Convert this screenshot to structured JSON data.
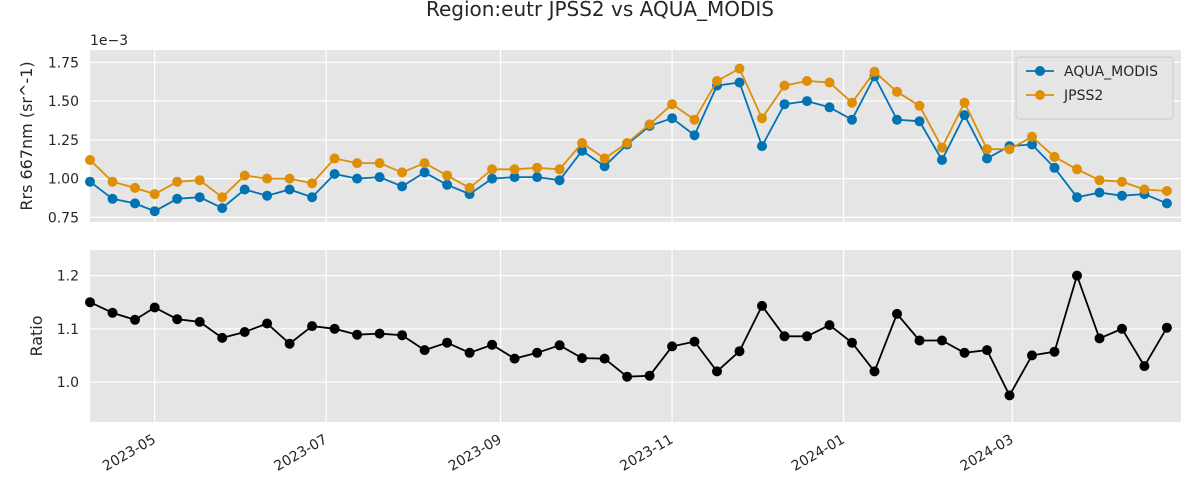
{
  "chart_data": {
    "type": "line",
    "title": "Region:eutr JPSS2 vs AQUA_MODIS",
    "x_tick_labels": [
      "2023-05",
      "2023-07",
      "2023-09",
      "2023-11",
      "2024-01",
      "2024-03"
    ],
    "x_ticks": [
      "2023-05-01",
      "2023-07-01",
      "2023-09-01",
      "2023-11-01",
      "2024-01-01",
      "2024-03-01"
    ],
    "xlim": [
      "2023-04-08",
      "2024-04-30"
    ],
    "dates": [
      "2023-04-08",
      "2023-04-16",
      "2023-04-24",
      "2023-05-01",
      "2023-05-09",
      "2023-05-17",
      "2023-05-25",
      "2023-06-02",
      "2023-06-10",
      "2023-06-18",
      "2023-06-26",
      "2023-07-04",
      "2023-07-12",
      "2023-07-20",
      "2023-07-28",
      "2023-08-05",
      "2023-08-13",
      "2023-08-21",
      "2023-08-29",
      "2023-09-06",
      "2023-09-14",
      "2023-09-22",
      "2023-09-30",
      "2023-10-08",
      "2023-10-16",
      "2023-10-24",
      "2023-11-01",
      "2023-11-09",
      "2023-11-17",
      "2023-11-25",
      "2023-12-03",
      "2023-12-11",
      "2023-12-19",
      "2023-12-27",
      "2024-01-04",
      "2024-01-12",
      "2024-01-20",
      "2024-01-28",
      "2024-02-05",
      "2024-02-13",
      "2024-02-21",
      "2024-02-29",
      "2024-03-08",
      "2024-03-16",
      "2024-03-24",
      "2024-04-01",
      "2024-04-09",
      "2024-04-17",
      "2024-04-25"
    ],
    "panels": [
      {
        "ylabel": "Rrs 667nm (sr^-1)",
        "offset_label": "1e−3",
        "y_tick_labels": [
          "0.75",
          "1.00",
          "1.25",
          "1.50",
          "1.75"
        ],
        "y_ticks": [
          0.75,
          1.0,
          1.25,
          1.5,
          1.75
        ],
        "ylim": [
          0.72,
          1.83
        ],
        "legend": "top-right",
        "series": [
          {
            "name": "AQUA_MODIS",
            "color": "#0173b2",
            "values": [
              0.98,
              0.87,
              0.84,
              0.79,
              0.87,
              0.88,
              0.81,
              0.93,
              0.89,
              0.93,
              0.88,
              1.03,
              1.0,
              1.01,
              0.95,
              1.04,
              0.96,
              0.9,
              1.0,
              1.01,
              1.01,
              0.99,
              1.18,
              1.08,
              1.22,
              1.34,
              1.39,
              1.28,
              1.6,
              1.62,
              1.21,
              1.48,
              1.5,
              1.46,
              1.38,
              1.66,
              1.38,
              1.37,
              1.12,
              1.41,
              1.13,
              1.21,
              1.22,
              1.07,
              0.88,
              0.91,
              0.89,
              0.9,
              0.84
            ]
          },
          {
            "name": "JPSS2",
            "color": "#de8f05",
            "values": [
              1.12,
              0.98,
              0.94,
              0.9,
              0.98,
              0.99,
              0.88,
              1.02,
              1.0,
              1.0,
              0.97,
              1.13,
              1.1,
              1.1,
              1.04,
              1.1,
              1.02,
              0.94,
              1.06,
              1.06,
              1.07,
              1.06,
              1.23,
              1.13,
              1.23,
              1.35,
              1.48,
              1.38,
              1.63,
              1.71,
              1.39,
              1.6,
              1.63,
              1.62,
              1.49,
              1.69,
              1.56,
              1.47,
              1.2,
              1.49,
              1.19,
              1.19,
              1.27,
              1.14,
              1.06,
              0.99,
              0.98,
              0.93,
              0.92
            ]
          }
        ]
      },
      {
        "ylabel": "Ratio",
        "y_tick_labels": [
          "1.0",
          "1.1",
          "1.2"
        ],
        "y_ticks": [
          1.0,
          1.1,
          1.2
        ],
        "ylim": [
          0.925,
          1.248
        ],
        "series": [
          {
            "color": "#000000",
            "values": [
              1.15,
              1.13,
              1.117,
              1.14,
              1.118,
              1.113,
              1.083,
              1.094,
              1.11,
              1.072,
              1.105,
              1.1,
              1.089,
              1.091,
              1.088,
              1.06,
              1.074,
              1.055,
              1.07,
              1.044,
              1.055,
              1.069,
              1.045,
              1.044,
              1.01,
              1.012,
              1.067,
              1.076,
              1.02,
              1.058,
              1.143,
              1.086,
              1.086,
              1.107,
              1.074,
              1.02,
              1.128,
              1.078,
              1.078,
              1.055,
              1.06,
              0.975,
              1.05,
              1.057,
              1.2,
              1.082,
              1.1,
              1.03,
              1.102
            ]
          }
        ]
      }
    ]
  }
}
